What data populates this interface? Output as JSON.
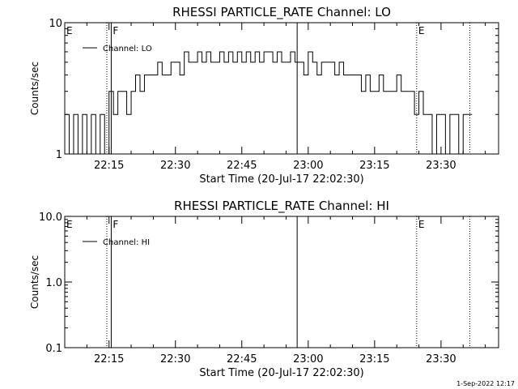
{
  "footer": {
    "timestamp": "1-Sep-2022 12:17"
  },
  "chart_data": [
    {
      "type": "line",
      "title": "RHESSI PARTICLE_RATE Channel: LO",
      "xlabel": "Start Time (20-Jul-17 22:02:30)",
      "ylabel": "Counts/sec",
      "x_unit": "minutes",
      "xlim": [
        "22:05",
        "23:43"
      ],
      "x_ticks": [
        "22:15",
        "22:30",
        "22:45",
        "23:00",
        "23:15",
        "23:30"
      ],
      "y_scale": "log",
      "ylim": [
        1,
        10
      ],
      "y_ticks": [
        "1",
        "10"
      ],
      "legend": {
        "position": "top-left",
        "entries": [
          "Channel: LO"
        ]
      },
      "event_markers": [
        {
          "label": "E",
          "time": "22:05",
          "style": "none"
        },
        {
          "label": "F",
          "time": "22:15:30",
          "style": "solid"
        },
        {
          "label": "",
          "time": "22:14:30",
          "style": "dotted"
        },
        {
          "label": "",
          "time": "22:57:30",
          "style": "solid"
        },
        {
          "label": "E",
          "time": "23:24:30",
          "style": "dotted"
        },
        {
          "label": "",
          "time": "23:36:30",
          "style": "dotted"
        }
      ],
      "series": [
        {
          "name": "Channel: LO",
          "x": [
            "22:05",
            "22:06",
            "22:07",
            "22:08",
            "22:09",
            "22:10",
            "22:11",
            "22:12",
            "22:13",
            "22:14",
            "22:15",
            "22:16",
            "22:17",
            "22:18",
            "22:19",
            "22:20",
            "22:21",
            "22:22",
            "22:23",
            "22:24",
            "22:25",
            "22:26",
            "22:27",
            "22:28",
            "22:29",
            "22:30",
            "22:31",
            "22:32",
            "22:33",
            "22:34",
            "22:35",
            "22:36",
            "22:37",
            "22:38",
            "22:39",
            "22:40",
            "22:41",
            "22:42",
            "22:43",
            "22:44",
            "22:45",
            "22:46",
            "22:47",
            "22:48",
            "22:49",
            "22:50",
            "22:51",
            "22:52",
            "22:53",
            "22:54",
            "22:55",
            "22:56",
            "22:57",
            "22:58",
            "22:59",
            "23:00",
            "23:01",
            "23:02",
            "23:03",
            "23:04",
            "23:05",
            "23:06",
            "23:07",
            "23:08",
            "23:09",
            "23:10",
            "23:11",
            "23:12",
            "23:13",
            "23:14",
            "23:15",
            "23:16",
            "23:17",
            "23:18",
            "23:19",
            "23:20",
            "23:21",
            "23:22",
            "23:23",
            "23:24",
            "23:25",
            "23:26",
            "23:27",
            "23:28",
            "23:29",
            "23:30",
            "23:31",
            "23:32",
            "23:33",
            "23:34",
            "23:35",
            "23:36"
          ],
          "values": [
            2,
            1,
            2,
            1,
            2,
            1,
            2,
            1,
            2,
            1,
            3,
            2,
            3,
            3,
            2,
            3,
            4,
            3,
            4,
            4,
            4,
            5,
            4,
            4,
            5,
            5,
            4,
            6,
            5,
            5,
            6,
            5,
            6,
            5,
            5,
            6,
            5,
            6,
            5,
            6,
            5,
            6,
            5,
            6,
            5,
            6,
            6,
            5,
            6,
            5,
            5,
            6,
            5,
            5,
            4,
            6,
            5,
            4,
            5,
            5,
            5,
            4,
            5,
            4,
            4,
            4,
            4,
            3,
            4,
            3,
            3,
            4,
            3,
            3,
            3,
            4,
            3,
            3,
            3,
            2,
            3,
            2,
            2,
            1,
            2,
            2,
            1,
            2,
            2,
            1,
            2,
            2
          ]
        }
      ]
    },
    {
      "type": "line",
      "title": "RHESSI PARTICLE_RATE Channel: HI",
      "xlabel": "Start Time (20-Jul-17 22:02:30)",
      "ylabel": "Counts/sec",
      "x_unit": "minutes",
      "xlim": [
        "22:05",
        "23:43"
      ],
      "x_ticks": [
        "22:15",
        "22:30",
        "22:45",
        "23:00",
        "23:15",
        "23:30"
      ],
      "y_scale": "log",
      "ylim": [
        0.1,
        10
      ],
      "y_ticks": [
        "0.1",
        "1.0",
        "10.0"
      ],
      "legend": {
        "position": "top-left",
        "entries": [
          "Channel: HI"
        ]
      },
      "event_markers": [
        {
          "label": "E",
          "time": "22:05",
          "style": "none"
        },
        {
          "label": "F",
          "time": "22:15:30",
          "style": "solid"
        },
        {
          "label": "",
          "time": "22:14:30",
          "style": "dotted"
        },
        {
          "label": "",
          "time": "22:57:30",
          "style": "solid"
        },
        {
          "label": "E",
          "time": "23:24:30",
          "style": "dotted"
        },
        {
          "label": "",
          "time": "23:36:30",
          "style": "dotted"
        }
      ],
      "series": [
        {
          "name": "Channel: HI",
          "x": [],
          "values": []
        }
      ]
    }
  ]
}
